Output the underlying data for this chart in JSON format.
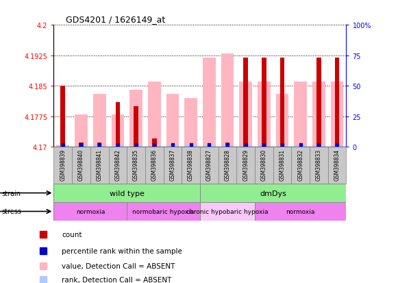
{
  "title": "GDS4201 / 1626149_at",
  "samples": [
    "GSM398839",
    "GSM398840",
    "GSM398841",
    "GSM398842",
    "GSM398835",
    "GSM398836",
    "GSM398837",
    "GSM398838",
    "GSM398827",
    "GSM398828",
    "GSM398829",
    "GSM398830",
    "GSM398831",
    "GSM398832",
    "GSM398833",
    "GSM398834"
  ],
  "red_values": [
    4.185,
    4.171,
    4.171,
    4.181,
    4.18,
    4.172,
    4.17,
    4.17,
    4.17,
    4.171,
    4.192,
    4.192,
    4.192,
    4.17,
    4.192,
    4.192
  ],
  "pink_values": [
    4.17,
    4.178,
    4.183,
    4.178,
    4.184,
    4.186,
    4.183,
    4.182,
    4.192,
    4.193,
    4.186,
    4.186,
    4.183,
    4.186,
    4.186,
    4.186
  ],
  "ymin": 4.17,
  "ymax": 4.2,
  "yticks": [
    4.17,
    4.1775,
    4.185,
    4.1925,
    4.2
  ],
  "yticklabels": [
    "4.17",
    "4.1775",
    "4.185",
    "4.1925",
    "4.2"
  ],
  "right_yticks_pct": [
    0,
    25,
    50,
    75,
    100
  ],
  "right_yticklabels": [
    "0",
    "25",
    "50",
    "75",
    "100%"
  ],
  "strain_groups": [
    {
      "label": "wild type",
      "start": 0,
      "end": 8,
      "color": "#90EE90"
    },
    {
      "label": "dmDys",
      "start": 8,
      "end": 16,
      "color": "#90EE90"
    }
  ],
  "stress_groups": [
    {
      "label": "normoxia",
      "start": 0,
      "end": 4,
      "color": "#EE82EE"
    },
    {
      "label": "normobaric hypoxia",
      "start": 4,
      "end": 8,
      "color": "#EE82EE"
    },
    {
      "label": "chronic hypobaric hypoxia",
      "start": 8,
      "end": 11,
      "color": "#F8C8F8"
    },
    {
      "label": "normoxia",
      "start": 11,
      "end": 16,
      "color": "#EE82EE"
    }
  ],
  "red_color": "#CC0000",
  "pink_color": "#FFB6C1",
  "blue_color": "#0000CC",
  "light_blue_color": "#B0C8FF",
  "sample_bg": "#C8C8C8",
  "legend_items": [
    {
      "color": "#CC0000",
      "label": "count"
    },
    {
      "color": "#0000CC",
      "label": "percentile rank within the sample"
    },
    {
      "color": "#FFB6C1",
      "label": "value, Detection Call = ABSENT"
    },
    {
      "color": "#B0C8FF",
      "label": "rank, Detection Call = ABSENT"
    }
  ]
}
